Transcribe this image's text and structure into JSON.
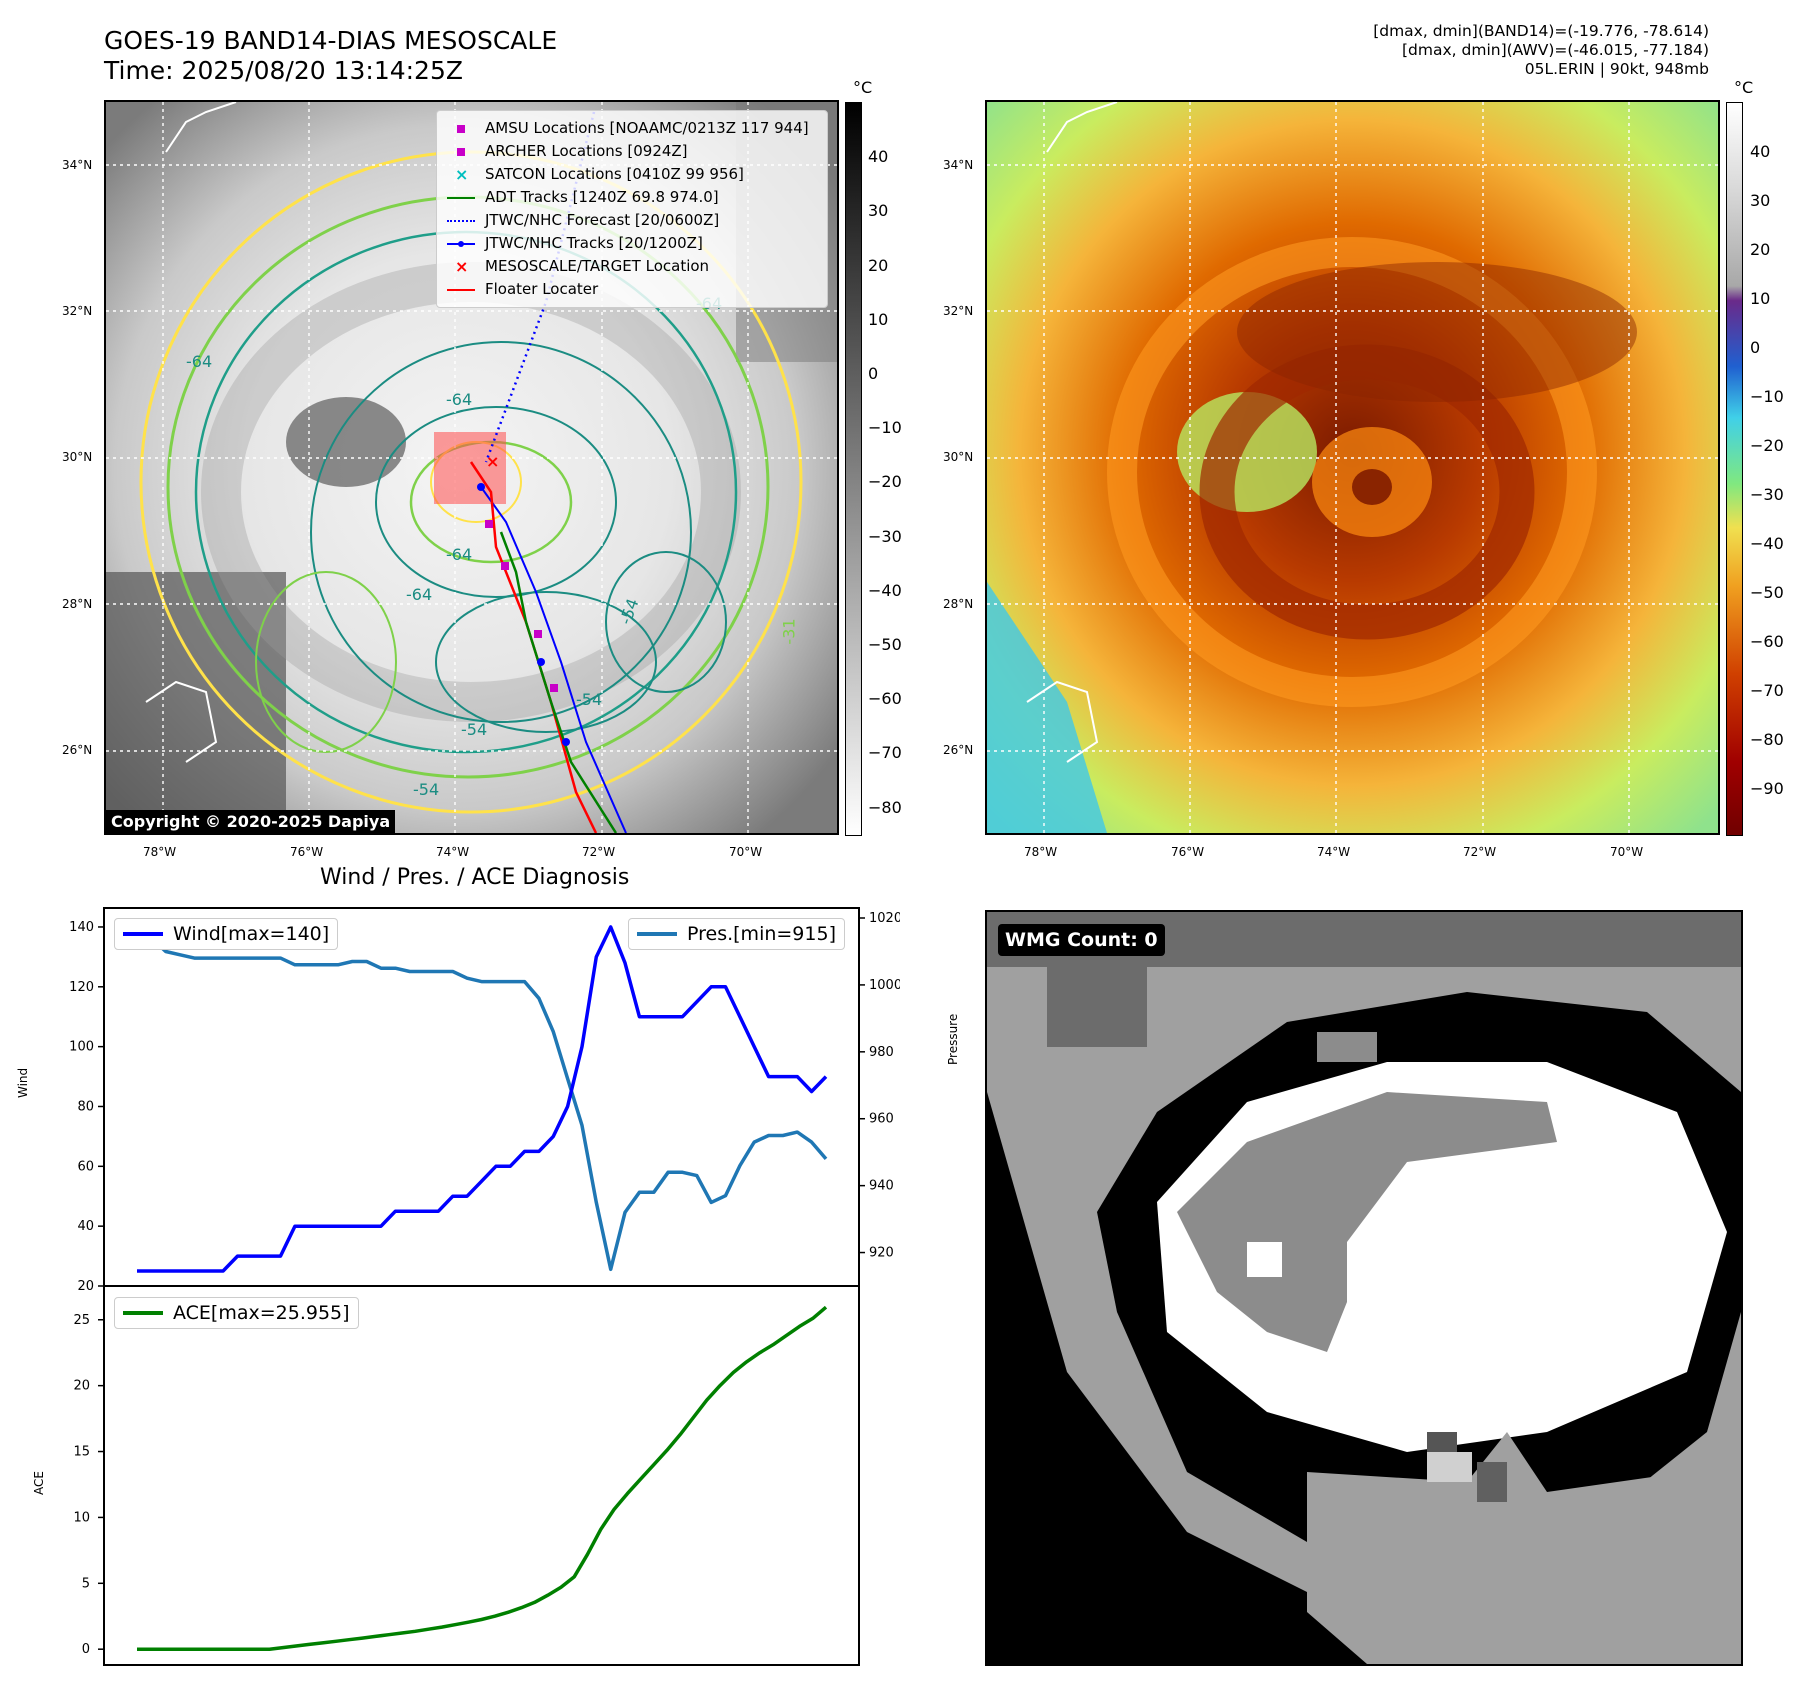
{
  "header": {
    "title_line1": "GOES-19 BAND14-DIAS MESOSCALE",
    "title_line2": "Time: 2025/08/20 13:14:25Z",
    "right_line1": "[dmax, dmin](BAND14)=(-19.776, -78.614)",
    "right_line2": "[dmax, dmin](AWV)=(-46.015, -77.184)",
    "right_line3": "05L.ERIN | 90kt, 948mb"
  },
  "map": {
    "lat_labels": [
      "34°N",
      "32°N",
      "30°N",
      "28°N",
      "26°N"
    ],
    "lon_labels": [
      "78°W",
      "76°W",
      "74°W",
      "72°W",
      "70°W"
    ],
    "copyright": "Copyright © 2020-2025 Dapiya",
    "contour_labels": [
      "-64",
      "-64",
      "-64",
      "-64",
      "-54",
      "-54",
      "-54",
      "-54",
      "-64",
      "-31"
    ]
  },
  "colorbar_gray": {
    "unit": "°C",
    "ticks": [
      "40",
      "30",
      "20",
      "10",
      "0",
      "−10",
      "−20",
      "−30",
      "−40",
      "−50",
      "−60",
      "−70",
      "−80"
    ]
  },
  "colorbar_color": {
    "unit": "°C",
    "ticks": [
      "40",
      "30",
      "20",
      "10",
      "0",
      "−10",
      "−20",
      "−30",
      "−40",
      "−50",
      "−60",
      "−70",
      "−80",
      "−90"
    ]
  },
  "legend": {
    "items": [
      {
        "label": "AMSU Locations [NOAAMC/0213Z 117 944]",
        "symbol": "magenta-square"
      },
      {
        "label": "ARCHER Locations [0924Z]",
        "symbol": "magenta-square"
      },
      {
        "label": "SATCON Locations [0410Z 99 956]",
        "symbol": "cyan-x"
      },
      {
        "label": "ADT Tracks [1240Z 69.8 974.0]",
        "symbol": "green-line"
      },
      {
        "label": "JTWC/NHC Forecast [20/0600Z]",
        "symbol": "blue-dotted"
      },
      {
        "label": "JTWC/NHC Tracks [20/1200Z]",
        "symbol": "blue-line-dot"
      },
      {
        "label": "MESOSCALE/TARGET Location",
        "symbol": "red-x"
      },
      {
        "label": "Floater Locater",
        "symbol": "red-line"
      }
    ]
  },
  "colors": {
    "wind": "#0000ff",
    "pressure": "#1f77b4",
    "ace": "#008000",
    "track_red": "#ff0000",
    "magenta": "#c800c8",
    "cyan": "#00bfbf"
  },
  "chart_data": [
    {
      "type": "line",
      "title": "Wind / Pres. / ACE Diagnosis",
      "ylabel": "Wind",
      "y2label": "Pressure",
      "ylim": [
        20,
        145
      ],
      "y2lim": [
        910,
        1020
      ],
      "yticks": [
        "140",
        "120",
        "100",
        "80",
        "60",
        "40",
        "20"
      ],
      "y2ticks": [
        "1020",
        "1000",
        "980",
        "960",
        "940",
        "920"
      ],
      "series": [
        {
          "name": "Wind[max=140]",
          "axis": "left",
          "values": [
            25,
            25,
            25,
            25,
            25,
            25,
            25,
            30,
            30,
            30,
            30,
            40,
            40,
            40,
            40,
            40,
            40,
            40,
            45,
            45,
            45,
            45,
            50,
            50,
            55,
            60,
            60,
            65,
            65,
            70,
            80,
            100,
            130,
            140,
            128,
            110,
            110,
            110,
            110,
            115,
            120,
            120,
            110,
            100,
            90,
            90,
            90,
            85,
            90
          ]
        },
        {
          "name": "Pres.[min=915]",
          "axis": "right",
          "values": [
            1014,
            1014,
            1010,
            1009,
            1008,
            1008,
            1008,
            1008,
            1008,
            1008,
            1008,
            1006,
            1006,
            1006,
            1006,
            1007,
            1007,
            1005,
            1005,
            1004,
            1004,
            1004,
            1004,
            1002,
            1001,
            1001,
            1001,
            1001,
            996,
            986,
            972,
            958,
            935,
            915,
            932,
            938,
            938,
            944,
            944,
            943,
            935,
            937,
            946,
            953,
            955,
            955,
            956,
            953,
            948
          ]
        }
      ]
    },
    {
      "type": "line",
      "ylabel": "ACE",
      "ylim": [
        -1.2,
        26.5
      ],
      "yticks": [
        "25",
        "20",
        "15",
        "10",
        "5",
        "0"
      ],
      "series": [
        {
          "name": "ACE[max=25.955]",
          "values": [
            0,
            0,
            0,
            0,
            0,
            0,
            0,
            0,
            0,
            0,
            0,
            0.12,
            0.24,
            0.36,
            0.48,
            0.6,
            0.72,
            0.84,
            0.97,
            1.1,
            1.23,
            1.36,
            1.52,
            1.68,
            1.86,
            2.05,
            2.25,
            2.5,
            2.8,
            3.15,
            3.55,
            4.1,
            4.7,
            5.5,
            7.2,
            9.1,
            10.6,
            11.8,
            12.9,
            14.0,
            15.1,
            16.3,
            17.6,
            18.9,
            20.0,
            21.0,
            21.8,
            22.5,
            23.1,
            23.8,
            24.5,
            25.1,
            25.955
          ]
        }
      ]
    }
  ],
  "wmg": {
    "badge": "WMG Count: 0"
  }
}
